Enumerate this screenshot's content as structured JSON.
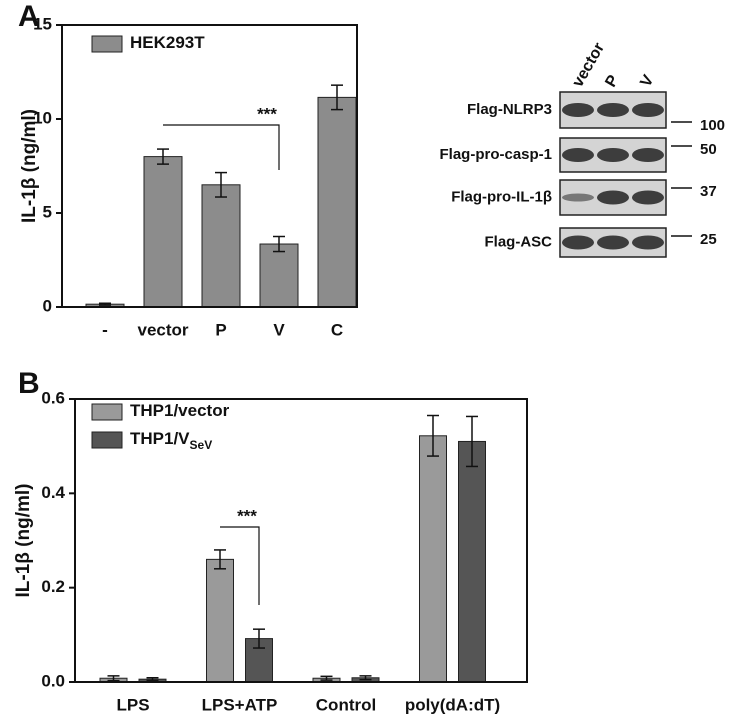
{
  "chart_data": [
    {
      "type": "bar",
      "panel": "A",
      "y_label": "IL-1β (ng/ml)",
      "categories": [
        "-",
        "vector",
        "P",
        "V",
        "C"
      ],
      "series": [
        {
          "name": "HEK293T",
          "color": "#8c8c8c",
          "values": [
            0.15,
            8.0,
            6.5,
            3.35,
            11.15
          ],
          "errors": [
            0.05,
            0.4,
            0.65,
            0.4,
            0.65
          ]
        }
      ],
      "ylim": [
        0,
        15
      ],
      "yticks": [
        0,
        5,
        10,
        15
      ],
      "annotation": "***"
    },
    {
      "type": "bar",
      "panel": "B",
      "y_label": "IL-1β (ng/ml)",
      "categories": [
        "LPS",
        "LPS+ATP",
        "Control",
        "poly(dA:dT)"
      ],
      "series": [
        {
          "name": "THP1/vector",
          "color": "#9a9a9a",
          "values": [
            0.008,
            0.26,
            0.008,
            0.522
          ],
          "errors": [
            0.005,
            0.02,
            0.004,
            0.043
          ]
        },
        {
          "name": "THP1/V",
          "name_sub": "SeV",
          "color": "#555555",
          "values": [
            0.006,
            0.092,
            0.009,
            0.51
          ],
          "errors": [
            0.003,
            0.02,
            0.004,
            0.053
          ]
        }
      ],
      "ylim": [
        0,
        0.6
      ],
      "yticks": [
        {
          "value": 0,
          "label": "0.0"
        },
        0.2,
        0.4,
        0.6
      ],
      "annotation": "***"
    }
  ],
  "blot": {
    "lanes": [
      "vector",
      "P",
      "V"
    ],
    "rows": [
      {
        "label": "Flag-NLRP3",
        "mw": 100
      },
      {
        "label": "Flag-pro-casp-1",
        "mw": 50
      },
      {
        "label": "Flag-pro-IL-1β",
        "mw": 37
      },
      {
        "label": "Flag-ASC",
        "mw": 25
      }
    ]
  }
}
